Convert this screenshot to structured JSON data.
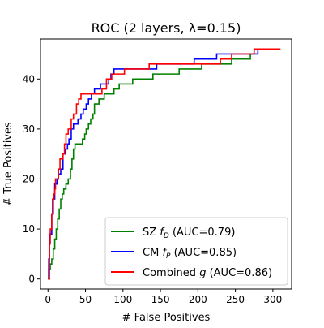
{
  "chart_data": {
    "type": "line",
    "title": "ROC (2 layers, λ=0.15)",
    "xlabel": "# False Positives",
    "ylabel": "# True Positives",
    "xlim": [
      -10,
      325
    ],
    "ylim": [
      -2,
      48
    ],
    "x_ticks": [
      0,
      50,
      100,
      150,
      200,
      250,
      300
    ],
    "y_ticks": [
      0,
      10,
      20,
      30,
      40
    ],
    "grid": false,
    "legend_position": "lower-right",
    "step": true,
    "series": [
      {
        "name": "SZ",
        "name_math": "f",
        "name_sub": "D",
        "auc_label": "(AUC=0.79)",
        "color": "#008000",
        "points": [
          [
            0,
            0
          ],
          [
            1,
            2
          ],
          [
            3,
            3
          ],
          [
            5,
            4
          ],
          [
            7,
            6
          ],
          [
            9,
            8
          ],
          [
            11,
            10
          ],
          [
            13,
            12
          ],
          [
            15,
            14
          ],
          [
            17,
            16
          ],
          [
            19,
            17
          ],
          [
            21,
            18
          ],
          [
            24,
            19
          ],
          [
            27,
            20
          ],
          [
            30,
            22
          ],
          [
            32,
            24
          ],
          [
            34,
            26
          ],
          [
            36,
            27
          ],
          [
            46,
            28
          ],
          [
            49,
            29
          ],
          [
            51,
            30
          ],
          [
            54,
            31
          ],
          [
            57,
            32
          ],
          [
            60,
            33
          ],
          [
            62,
            35
          ],
          [
            68,
            36
          ],
          [
            75,
            37
          ],
          [
            88,
            38
          ],
          [
            95,
            39
          ],
          [
            103,
            39
          ],
          [
            113,
            40
          ],
          [
            140,
            41
          ],
          [
            160,
            41
          ],
          [
            175,
            42
          ],
          [
            205,
            43
          ],
          [
            240,
            43
          ],
          [
            245,
            44
          ],
          [
            270,
            45
          ],
          [
            275,
            46
          ],
          [
            310,
            46
          ]
        ]
      },
      {
        "name": "CM",
        "name_math": "f",
        "name_sub": "P",
        "auc_label": "(AUC=0.85)",
        "color": "#0000ff",
        "points": [
          [
            0,
            0
          ],
          [
            1,
            4
          ],
          [
            2,
            9
          ],
          [
            5,
            13
          ],
          [
            7,
            16
          ],
          [
            9,
            19
          ],
          [
            12,
            20
          ],
          [
            14,
            21
          ],
          [
            17,
            22
          ],
          [
            20,
            25
          ],
          [
            23,
            26
          ],
          [
            26,
            27
          ],
          [
            28,
            28
          ],
          [
            31,
            30
          ],
          [
            34,
            31
          ],
          [
            40,
            32
          ],
          [
            44,
            33
          ],
          [
            47,
            34
          ],
          [
            51,
            35
          ],
          [
            54,
            36
          ],
          [
            58,
            37
          ],
          [
            62,
            38
          ],
          [
            70,
            39
          ],
          [
            81,
            40
          ],
          [
            84,
            41
          ],
          [
            88,
            42
          ],
          [
            120,
            42
          ],
          [
            145,
            43
          ],
          [
            160,
            43
          ],
          [
            195,
            44
          ],
          [
            220,
            44
          ],
          [
            225,
            45
          ],
          [
            275,
            45
          ],
          [
            280,
            46
          ],
          [
            310,
            46
          ]
        ]
      },
      {
        "name": "Combined",
        "name_math": "g",
        "name_sub": "",
        "auc_label": "(AUC=0.86)",
        "color": "#ff0000",
        "points": [
          [
            0,
            0
          ],
          [
            2,
            7
          ],
          [
            3,
            10
          ],
          [
            5,
            13
          ],
          [
            6,
            16
          ],
          [
            8,
            17
          ],
          [
            9,
            18
          ],
          [
            10,
            20
          ],
          [
            14,
            22
          ],
          [
            16,
            24
          ],
          [
            20,
            25
          ],
          [
            22,
            27
          ],
          [
            24,
            29
          ],
          [
            27,
            30
          ],
          [
            31,
            32
          ],
          [
            34,
            33
          ],
          [
            38,
            35
          ],
          [
            41,
            36
          ],
          [
            44,
            37
          ],
          [
            72,
            38
          ],
          [
            78,
            40
          ],
          [
            85,
            41
          ],
          [
            102,
            42
          ],
          [
            135,
            43
          ],
          [
            230,
            44
          ],
          [
            245,
            45
          ],
          [
            275,
            46
          ],
          [
            310,
            46
          ]
        ]
      }
    ]
  }
}
